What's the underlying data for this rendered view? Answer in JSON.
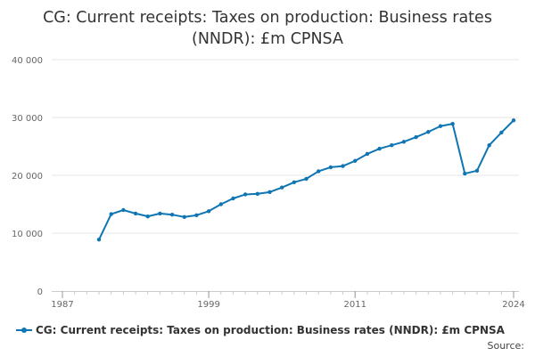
{
  "chart_data": {
    "type": "line",
    "title": "CG: Current receipts: Taxes on production: Business rates (NNDR): £m CPNSA",
    "xlabel": "",
    "ylabel": "",
    "xlim": [
      1987,
      2024
    ],
    "ylim": [
      0,
      40000
    ],
    "x_ticks": [
      1987,
      1999,
      2011,
      2024
    ],
    "x_tick_labels": [
      "1987",
      "1999",
      "2011",
      "2024"
    ],
    "y_ticks": [
      0,
      10000,
      20000,
      30000,
      40000
    ],
    "y_tick_labels": [
      "0",
      "10 000",
      "20 000",
      "30 000",
      "40 000"
    ],
    "grid": true,
    "legend_position": "bottom-left",
    "series": [
      {
        "name": "CG: Current receipts: Taxes on production: Business rates (NNDR): £m CPNSA",
        "color": "#0f75b3",
        "x": [
          1990,
          1991,
          1992,
          1993,
          1994,
          1995,
          1996,
          1997,
          1998,
          1999,
          2000,
          2001,
          2002,
          2003,
          2004,
          2005,
          2006,
          2007,
          2008,
          2009,
          2010,
          2011,
          2012,
          2013,
          2014,
          2015,
          2016,
          2017,
          2018,
          2019,
          2020,
          2021,
          2022,
          2023,
          2024
        ],
        "values": [
          8900,
          13300,
          14000,
          13400,
          12900,
          13400,
          13200,
          12800,
          13100,
          13800,
          15000,
          16000,
          16700,
          16800,
          17100,
          17900,
          18800,
          19400,
          20700,
          21400,
          21600,
          22500,
          23700,
          24600,
          25200,
          25800,
          26600,
          27500,
          28500,
          28900,
          20300,
          20800,
          25200,
          27400,
          29500
        ]
      }
    ]
  },
  "legend": {
    "label": "CG: Current receipts: Taxes on production: Business rates (NNDR): £m CPNSA"
  },
  "source": {
    "label": "Source:"
  }
}
